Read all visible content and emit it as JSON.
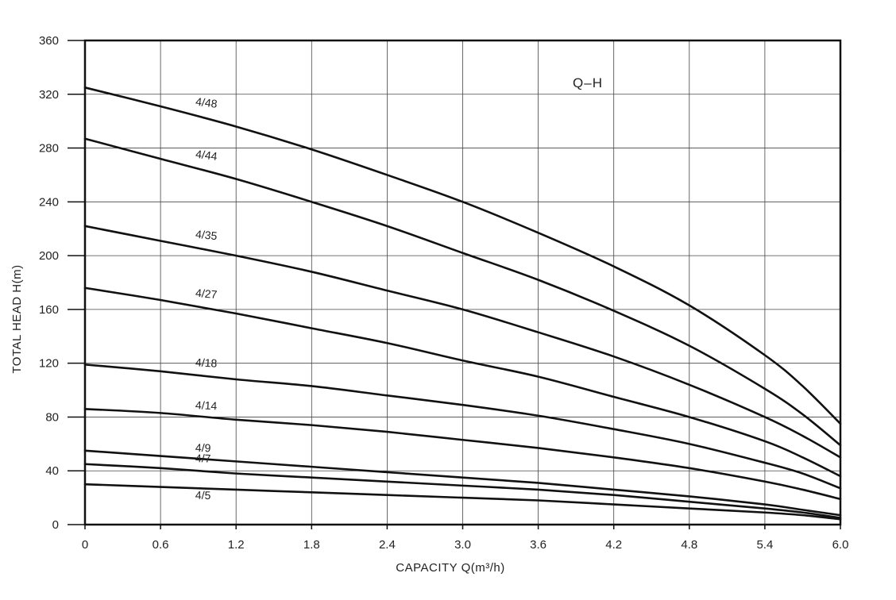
{
  "chart_data": {
    "type": "line",
    "title": "Q–H",
    "xlabel": "CAPACITY  Q(m³/h)",
    "ylabel": "TOTAL HEAD  H(m)",
    "xlim": [
      0,
      6.0
    ],
    "ylim": [
      0,
      360
    ],
    "x_ticks": [
      "0",
      "0.6",
      "1.2",
      "1.8",
      "2.4",
      "3.0",
      "3.6",
      "4.2",
      "4.8",
      "5.4",
      "6.0"
    ],
    "y_ticks": [
      "0",
      "40",
      "80",
      "120",
      "160",
      "200",
      "240",
      "280",
      "320",
      "360"
    ],
    "grid": true,
    "x": [
      0,
      0.6,
      1.2,
      1.8,
      2.4,
      3.0,
      3.6,
      4.2,
      4.8,
      5.4,
      5.7,
      6.0
    ],
    "series": [
      {
        "name": "4/48",
        "values": [
          325,
          311,
          296,
          279,
          260,
          240,
          217,
          192,
          163,
          126,
          103,
          75
        ]
      },
      {
        "name": "4/44",
        "values": [
          287,
          272,
          257,
          240,
          222,
          202,
          182,
          159,
          133,
          101,
          82,
          59
        ]
      },
      {
        "name": "4/35",
        "values": [
          222,
          211,
          200,
          188,
          174,
          160,
          143,
          125,
          104,
          80,
          66,
          50
        ]
      },
      {
        "name": "4/27",
        "values": [
          176,
          167,
          157,
          146,
          135,
          122,
          110,
          95,
          80,
          62,
          50,
          36
        ]
      },
      {
        "name": "4/18",
        "values": [
          119,
          114,
          108,
          103,
          96,
          89,
          81,
          71,
          60,
          46,
          38,
          27
        ]
      },
      {
        "name": "4/14",
        "values": [
          86,
          83,
          78,
          74,
          69,
          63,
          57,
          50,
          42,
          32,
          26,
          19
        ]
      },
      {
        "name": "4/9",
        "values": [
          55,
          51,
          47,
          43,
          39,
          35,
          31,
          26,
          21,
          15,
          11,
          7
        ]
      },
      {
        "name": "4/7",
        "values": [
          45,
          42,
          38,
          35,
          32,
          29,
          26,
          22,
          17,
          12,
          9,
          5
        ]
      },
      {
        "name": "4/5",
        "values": [
          30,
          28,
          26,
          24,
          22,
          20,
          18,
          15,
          12,
          9,
          7,
          4
        ]
      }
    ],
    "label_x": [
      0.8,
      0.8,
      0.8,
      0.8,
      0.8,
      0.8,
      0.8,
      0.8,
      0.8
    ],
    "label_dy": [
      -10,
      -10,
      -10,
      -10,
      -10,
      -8,
      -8,
      -10,
      14
    ],
    "label_angle": [
      -7,
      -7,
      -5.5,
      -5,
      -3,
      -2.5,
      -1.5,
      -1.5,
      -1
    ]
  }
}
